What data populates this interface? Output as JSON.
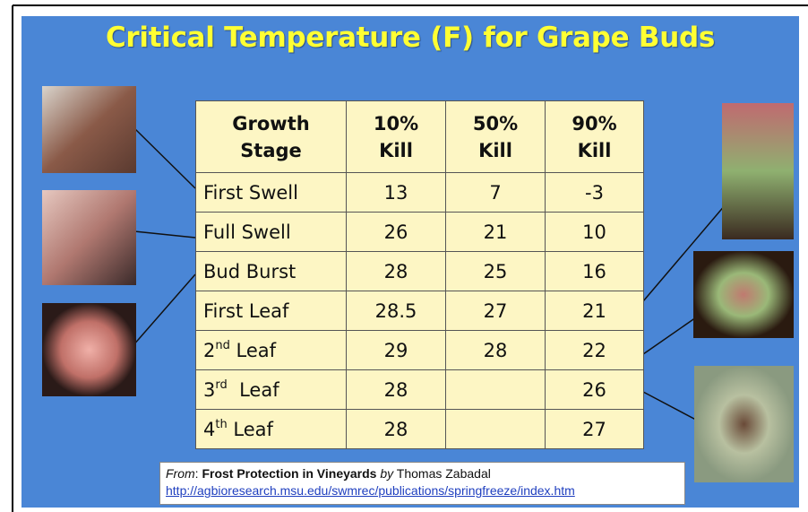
{
  "title": "Critical Temperature (F) for Grape Buds",
  "table": {
    "header": [
      [
        "Growth",
        "Stage"
      ],
      [
        "10%",
        "Kill"
      ],
      [
        "50%",
        "Kill"
      ],
      [
        "90%",
        "Kill"
      ]
    ],
    "rows": [
      [
        "First Swell",
        "13",
        "7",
        "-3"
      ],
      [
        "Full Swell",
        "26",
        "21",
        "10"
      ],
      [
        "Bud Burst",
        "28",
        "25",
        "16"
      ],
      [
        "First Leaf",
        "28.5",
        "27",
        "21"
      ],
      [
        {
          "base": "2",
          "sup": "nd",
          "text": " Leaf"
        },
        "29",
        "28",
        "22"
      ],
      [
        {
          "base": "3",
          "sup": "rd",
          "text": "  Leaf"
        },
        "28",
        null,
        "26"
      ],
      [
        {
          "base": "4",
          "sup": "th",
          "text": " Leaf"
        },
        "28",
        null,
        "27"
      ]
    ]
  },
  "citation": {
    "from": "From",
    "colon": ":",
    "work": "Frost  Protection in Vineyards",
    "by": "by",
    "author": "Thomas Zabadal",
    "url": "http://agbioresearch.msu.edu/swmrec/publications/springfreeze/index.htm"
  }
}
